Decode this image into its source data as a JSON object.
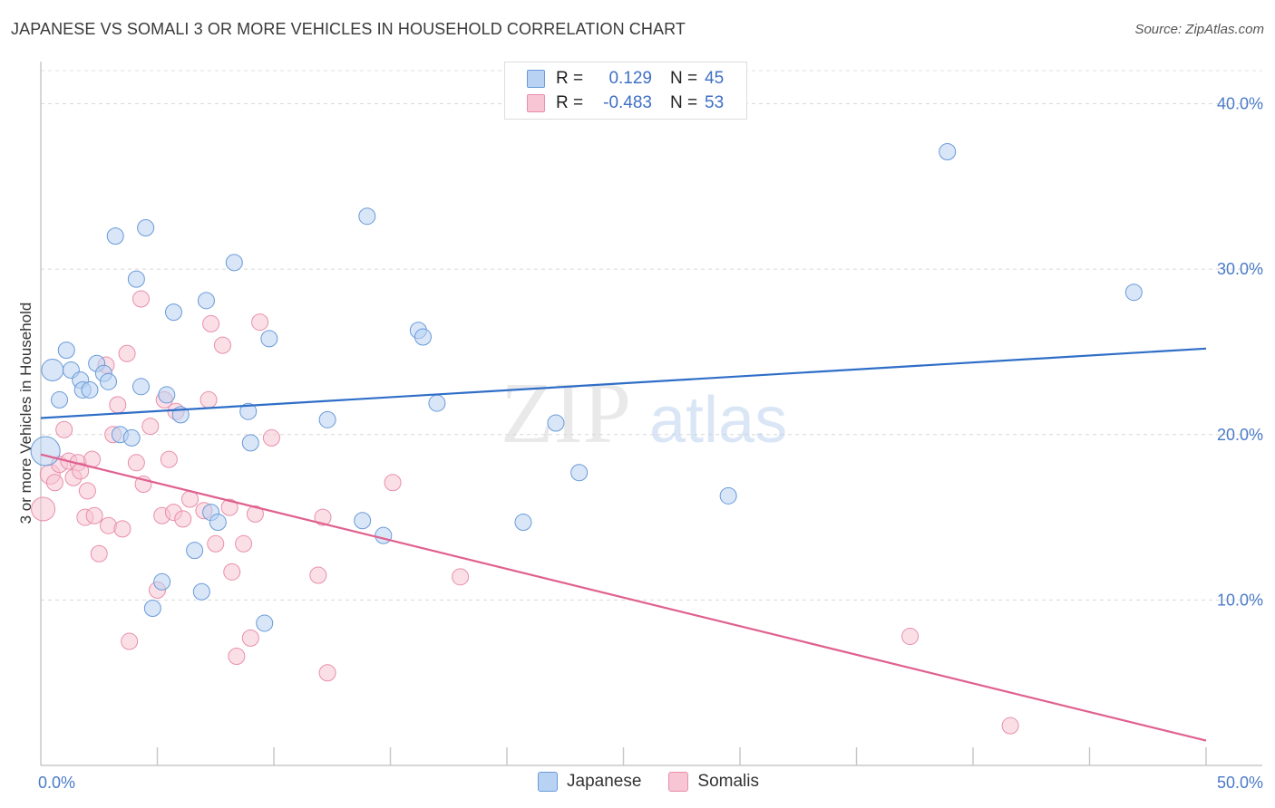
{
  "header": {
    "title": "JAPANESE VS SOMALI 3 OR MORE VEHICLES IN HOUSEHOLD CORRELATION CHART",
    "source": "Source: ZipAtlas.com"
  },
  "legend": {
    "rows": [
      {
        "r_label": "R =",
        "r_value": "0.129",
        "n_label": "N =",
        "n_value": "45"
      },
      {
        "r_label": "R =",
        "r_value": "-0.483",
        "n_label": "N =",
        "n_value": "53"
      }
    ]
  },
  "bottom_legend": {
    "items": [
      {
        "label": "Japanese"
      },
      {
        "label": "Somalis"
      }
    ]
  },
  "watermark": {
    "zip": "ZIP",
    "atlas": "atlas"
  },
  "colors": {
    "japanese_fill": "#b8d2f3",
    "japanese_stroke": "#6a9ad8",
    "japanese_line": "#2f6ec7",
    "somali_fill": "#f7c5d3",
    "somali_stroke": "#e88fab",
    "somali_line": "#e0608f",
    "tick_text": "#4a7bc8"
  },
  "chart_data": {
    "type": "scatter",
    "title": "JAPANESE VS SOMALI 3 OR MORE VEHICLES IN HOUSEHOLD CORRELATION CHART",
    "xlabel": "",
    "ylabel": "3 or more Vehicles in Household",
    "xlim": [
      0,
      50
    ],
    "ylim": [
      0,
      42
    ],
    "x_tick_labels": [
      "0.0%",
      "50.0%"
    ],
    "y_ticks": [
      10,
      20,
      30,
      40
    ],
    "y_tick_labels": [
      "10.0%",
      "20.0%",
      "30.0%",
      "40.0%"
    ],
    "grid": true,
    "legend_position": "top-center",
    "series": [
      {
        "name": "Japanese",
        "r": 0.129,
        "n": 45,
        "trend": {
          "x0": 0,
          "y0": 21.0,
          "x1": 50,
          "y1": 25.2
        },
        "points": [
          [
            0.2,
            19.0,
            16
          ],
          [
            0.5,
            23.9,
            12
          ],
          [
            0.8,
            22.1,
            9
          ],
          [
            1.1,
            25.1,
            9
          ],
          [
            1.3,
            23.9,
            9
          ],
          [
            1.7,
            23.3,
            9
          ],
          [
            1.8,
            22.7,
            9
          ],
          [
            2.1,
            22.7,
            9
          ],
          [
            2.4,
            24.3,
            9
          ],
          [
            2.7,
            23.7,
            9
          ],
          [
            2.9,
            23.2,
            9
          ],
          [
            3.2,
            32.0,
            9
          ],
          [
            3.4,
            20.0,
            9
          ],
          [
            3.9,
            19.8,
            9
          ],
          [
            4.1,
            29.4,
            9
          ],
          [
            4.3,
            22.9,
            9
          ],
          [
            4.5,
            32.5,
            9
          ],
          [
            4.8,
            9.5,
            9
          ],
          [
            5.2,
            11.1,
            9
          ],
          [
            5.4,
            22.4,
            9
          ],
          [
            5.7,
            27.4,
            9
          ],
          [
            6.0,
            21.2,
            9
          ],
          [
            6.6,
            13.0,
            9
          ],
          [
            6.9,
            10.5,
            9
          ],
          [
            7.1,
            28.1,
            9
          ],
          [
            7.3,
            15.3,
            9
          ],
          [
            7.6,
            14.7,
            9
          ],
          [
            8.3,
            30.4,
            9
          ],
          [
            8.9,
            21.4,
            9
          ],
          [
            9.0,
            19.5,
            9
          ],
          [
            9.6,
            8.6,
            9
          ],
          [
            9.8,
            25.8,
            9
          ],
          [
            12.3,
            20.9,
            9
          ],
          [
            13.8,
            14.8,
            9
          ],
          [
            14.0,
            33.2,
            9
          ],
          [
            14.7,
            13.9,
            9
          ],
          [
            16.2,
            26.3,
            9
          ],
          [
            16.4,
            25.9,
            9
          ],
          [
            17.0,
            21.9,
            9
          ],
          [
            20.7,
            14.7,
            9
          ],
          [
            22.1,
            20.7,
            9
          ],
          [
            23.1,
            17.7,
            9
          ],
          [
            29.5,
            16.3,
            9
          ],
          [
            38.9,
            37.1,
            9
          ],
          [
            46.9,
            28.6,
            9
          ]
        ]
      },
      {
        "name": "Somalis",
        "r": -0.483,
        "n": 53,
        "trend": {
          "x0": 0,
          "y0": 18.8,
          "x1": 50,
          "y1": 1.5
        },
        "points": [
          [
            0.1,
            15.5,
            13
          ],
          [
            0.4,
            17.6,
            11
          ],
          [
            0.6,
            17.1,
            9
          ],
          [
            0.8,
            18.2,
            9
          ],
          [
            1.0,
            20.3,
            9
          ],
          [
            1.2,
            18.4,
            9
          ],
          [
            1.4,
            17.4,
            9
          ],
          [
            1.6,
            18.3,
            9
          ],
          [
            1.7,
            17.8,
            9
          ],
          [
            1.9,
            15.0,
            9
          ],
          [
            2.0,
            16.6,
            9
          ],
          [
            2.2,
            18.5,
            9
          ],
          [
            2.3,
            15.1,
            9
          ],
          [
            2.5,
            12.8,
            9
          ],
          [
            2.8,
            24.2,
            9
          ],
          [
            2.9,
            14.5,
            9
          ],
          [
            3.1,
            20.0,
            9
          ],
          [
            3.3,
            21.8,
            9
          ],
          [
            3.5,
            14.3,
            9
          ],
          [
            3.7,
            24.9,
            9
          ],
          [
            3.8,
            7.5,
            9
          ],
          [
            4.1,
            18.3,
            9
          ],
          [
            4.3,
            28.2,
            9
          ],
          [
            4.4,
            17.0,
            9
          ],
          [
            4.7,
            20.5,
            9
          ],
          [
            5.0,
            10.6,
            9
          ],
          [
            5.2,
            15.1,
            9
          ],
          [
            5.3,
            22.1,
            9
          ],
          [
            5.5,
            18.5,
            9
          ],
          [
            5.7,
            15.3,
            9
          ],
          [
            5.8,
            21.4,
            9
          ],
          [
            6.1,
            14.9,
            9
          ],
          [
            6.4,
            16.1,
            9
          ],
          [
            7.0,
            15.4,
            9
          ],
          [
            7.3,
            26.7,
            9
          ],
          [
            7.2,
            22.1,
            9
          ],
          [
            7.5,
            13.4,
            9
          ],
          [
            7.8,
            25.4,
            9
          ],
          [
            8.1,
            15.6,
            9
          ],
          [
            8.2,
            11.7,
            9
          ],
          [
            8.4,
            6.6,
            9
          ],
          [
            8.7,
            13.4,
            9
          ],
          [
            9.0,
            7.7,
            9
          ],
          [
            9.2,
            15.2,
            9
          ],
          [
            9.4,
            26.8,
            9
          ],
          [
            9.9,
            19.8,
            9
          ],
          [
            11.9,
            11.5,
            9
          ],
          [
            12.1,
            15.0,
            9
          ],
          [
            12.3,
            5.6,
            9
          ],
          [
            15.1,
            17.1,
            9
          ],
          [
            18.0,
            11.4,
            9
          ],
          [
            37.3,
            7.8,
            9
          ],
          [
            41.6,
            2.4,
            9
          ]
        ]
      }
    ]
  }
}
